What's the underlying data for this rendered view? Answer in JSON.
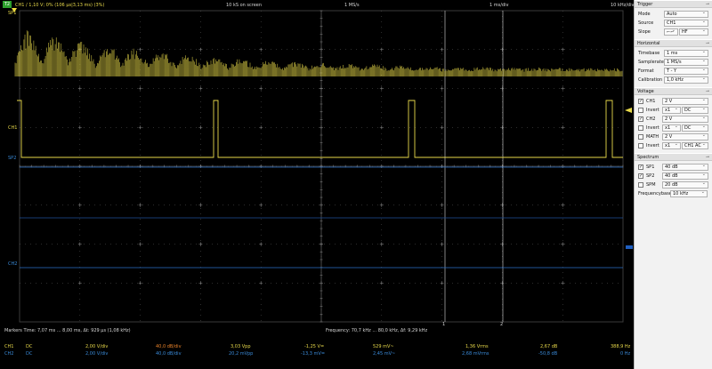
{
  "toolbar": {
    "badge": "T2",
    "ch1_status": "CH1 / 1,10 V; 0% (106 µs|3,13 ms) (3%)",
    "samples": "10 kS on screen",
    "samplerate": "1 MS/s",
    "timebase": "1 ms/div",
    "freq_div": "10 kHz/div"
  },
  "markers_labels": {
    "sp1": "SP1",
    "ch1": "CH1",
    "sp2": "SP2",
    "ch2": "CH2"
  },
  "cursors": {
    "c1": "1",
    "c2": "2"
  },
  "bottom": {
    "markers": "Markers  Time: 7,07 ms ... 8,00 ms,  Δt: 929 µs (1,08 kHz)",
    "frequency": "Frequency: 70,7 kHz ... 80,0 kHz,  Δf: 9,29 kHz",
    "ch1": {
      "name": "CH1",
      "coupling": "DC",
      "vdiv": "2,00 V/div",
      "dbdiv": "40,0 dB/div",
      "vpp": "3,03 Vpp",
      "dc": "-1,25 V=",
      "ac": "529 mV~",
      "rms": "1,36 Vrms",
      "db": "2,67 dB",
      "freq": "388,9 Hz"
    },
    "ch2": {
      "name": "CH2",
      "coupling": "DC",
      "vdiv": "2,00 V/div",
      "dbdiv": "40,0 dB/div",
      "vpp": "20,2 mVpp",
      "dc": "-13,3 mV=",
      "ac": "2,45 mV~",
      "rms": "2,68 mVrms",
      "db": "-50,8 dB",
      "freq": "0 Hz"
    }
  },
  "panel": {
    "trigger": {
      "title": "Trigger",
      "mode_label": "Mode",
      "mode_value": "Auto",
      "source_label": "Source",
      "source_value": "CH1",
      "slope_label": "Slope",
      "slope_symbol": "⌐⌐",
      "slope_value": "HF"
    },
    "horizontal": {
      "title": "Horizontal",
      "timebase_label": "Timebase",
      "timebase_value": "1 ms",
      "samplerate_label": "Samplerate",
      "samplerate_value": "1 MS/s",
      "format_label": "Format",
      "format_value": "T - Y",
      "calibration_label": "Calibration out",
      "calibration_value": "1,0 kHz"
    },
    "voltage": {
      "title": "Voltage",
      "ch1_label": "CH1",
      "ch1_value": "2 V",
      "ch1_checked": true,
      "ch1_invert_label": "Invert",
      "ch1_probe": "x1",
      "ch1_coupling": "DC",
      "ch2_label": "CH2",
      "ch2_value": "2 V",
      "ch2_checked": true,
      "ch2_invert_label": "Invert",
      "ch2_probe": "x1",
      "ch2_coupling": "DC",
      "math_label": "MATH",
      "math_value": "2 V",
      "math_checked": false,
      "math_invert_label": "Invert",
      "math_probe": "x1",
      "math_mode": "CH1 AC"
    },
    "spectrum": {
      "title": "Spectrum",
      "sp1_label": "SP1",
      "sp1_value": "40 dB",
      "sp1_checked": true,
      "sp2_label": "SP2",
      "sp2_value": "40 dB",
      "sp2_checked": true,
      "spm_label": "SPM",
      "spm_value": "20 dB",
      "spm_checked": false,
      "freqbase_label": "Frequencybase",
      "freqbase_value": "10 kHz"
    },
    "pin_icon": "pin-icon"
  },
  "colors": {
    "ch1": "#e8d94a",
    "ch2": "#3a8ad8",
    "grid": "#5a5a5a",
    "orange": "#e8822a"
  }
}
